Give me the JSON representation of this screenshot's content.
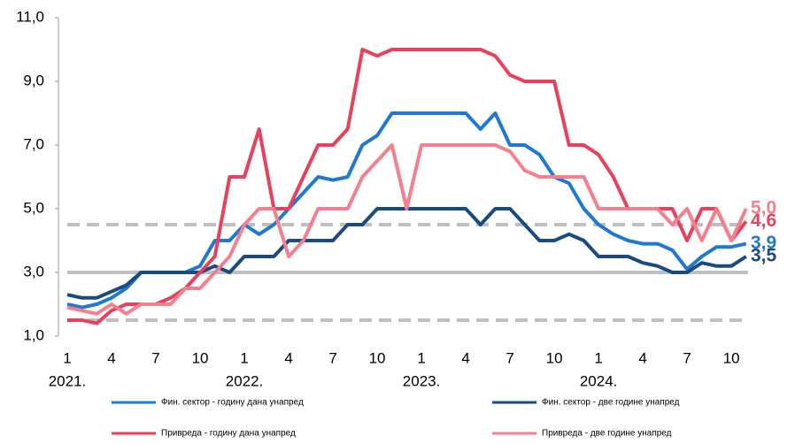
{
  "chart_data": {
    "type": "line",
    "categories": [
      "1",
      null,
      null,
      "4",
      null,
      null,
      "7",
      null,
      null,
      "10",
      null,
      null,
      "1",
      null,
      null,
      "4",
      null,
      null,
      "7",
      null,
      null,
      "10",
      null,
      null,
      "1",
      null,
      null,
      "4",
      null,
      null,
      "7",
      null,
      null,
      "10",
      null,
      null,
      "1",
      null,
      null,
      "4",
      null,
      null,
      "7",
      null,
      null,
      "10",
      null
    ],
    "years": [
      "2021.",
      "2022.",
      "2023.",
      "2024."
    ],
    "ylim": [
      1,
      11
    ],
    "yticks": [
      {
        "value": 1,
        "label": "1,0"
      },
      {
        "value": 3,
        "label": "3,0"
      },
      {
        "value": 5,
        "label": "5,0"
      },
      {
        "value": 7,
        "label": "7,0"
      },
      {
        "value": 9,
        "label": "9,0"
      },
      {
        "value": 11,
        "label": "11,0"
      }
    ],
    "reference_lines": [
      {
        "value": 3,
        "style": "solid"
      },
      {
        "value": 4.5,
        "style": "dashed"
      },
      {
        "value": 1.5,
        "style": "dashed"
      }
    ],
    "series": [
      {
        "name": "Фин. сектор - годину дана унапред",
        "color": "#1f78d1",
        "end_label": "3,9",
        "values": [
          2.0,
          1.9,
          2.0,
          2.2,
          2.5,
          3.0,
          3.0,
          3.0,
          3.0,
          3.2,
          4.0,
          4.0,
          4.5,
          4.2,
          4.5,
          5.0,
          5.5,
          6.0,
          5.9,
          6.0,
          7.0,
          7.3,
          8.0,
          8.0,
          8.0,
          8.0,
          8.0,
          8.0,
          7.5,
          8.0,
          7.0,
          7.0,
          6.7,
          6.0,
          5.8,
          5.0,
          4.5,
          4.2,
          4.0,
          3.9,
          3.9,
          3.7,
          3.1,
          3.5,
          3.8,
          3.8,
          3.9
        ]
      },
      {
        "name": "Фин. сектор - две године унапред",
        "color": "#1a4b7e",
        "end_label": "3,5",
        "values": [
          2.3,
          2.2,
          2.2,
          2.4,
          2.6,
          3.0,
          3.0,
          3.0,
          3.0,
          3.0,
          3.2,
          3.0,
          3.5,
          3.5,
          3.5,
          4.0,
          4.0,
          4.0,
          4.0,
          4.5,
          4.5,
          5.0,
          5.0,
          5.0,
          5.0,
          5.0,
          5.0,
          5.0,
          4.5,
          5.0,
          5.0,
          4.5,
          4.0,
          4.0,
          4.2,
          4.0,
          3.5,
          3.5,
          3.5,
          3.3,
          3.2,
          3.0,
          3.0,
          3.3,
          3.2,
          3.2,
          3.5
        ]
      },
      {
        "name": "Привреда - годину дана унапред",
        "color": "#e8415c",
        "end_label": "4,6",
        "values": [
          1.5,
          1.5,
          1.4,
          1.8,
          2.0,
          2.0,
          2.0,
          2.2,
          2.5,
          3.0,
          3.5,
          6.0,
          6.0,
          7.5,
          5.0,
          5.0,
          6.0,
          7.0,
          7.0,
          7.5,
          10.0,
          9.8,
          10.0,
          10.0,
          10.0,
          10.0,
          10.0,
          10.0,
          10.0,
          9.8,
          9.2,
          9.0,
          9.0,
          9.0,
          7.0,
          7.0,
          6.7,
          6.0,
          5.0,
          5.0,
          5.0,
          5.0,
          4.0,
          5.0,
          5.0,
          4.0,
          4.6
        ]
      },
      {
        "name": "Привреда - две године унапред",
        "color": "#f4808f",
        "end_label": "5,0",
        "values": [
          1.9,
          1.8,
          1.7,
          2.0,
          1.7,
          2.0,
          2.0,
          2.0,
          2.5,
          2.5,
          3.0,
          3.5,
          4.5,
          5.0,
          5.0,
          3.5,
          4.0,
          5.0,
          5.0,
          5.0,
          6.0,
          6.5,
          7.0,
          5.0,
          7.0,
          7.0,
          7.0,
          7.0,
          7.0,
          7.0,
          6.8,
          6.2,
          6.0,
          6.0,
          6.0,
          6.0,
          5.0,
          5.0,
          5.0,
          5.0,
          5.0,
          4.5,
          5.0,
          4.0,
          5.0,
          4.0,
          5.0
        ]
      }
    ]
  }
}
